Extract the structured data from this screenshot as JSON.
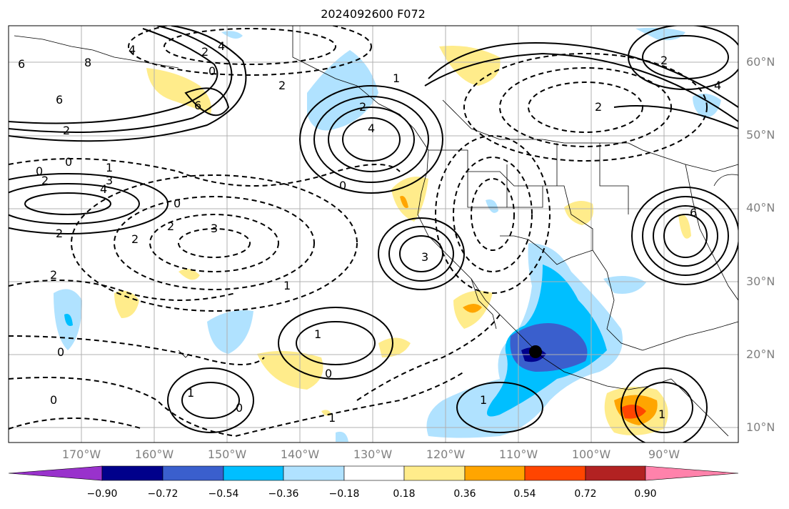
{
  "title": "2024092600 F072",
  "lat_labels": [
    "60°N",
    "50°N",
    "40°N",
    "30°N",
    "20°N",
    "10°N"
  ],
  "lon_labels": [
    "170°W",
    "160°W",
    "150°W",
    "140°W",
    "130°W",
    "120°W",
    "110°W",
    "100°W",
    "90°W"
  ],
  "colorbar": {
    "labels": [
      "−0.90",
      "−0.72",
      "−0.54",
      "−0.36",
      "−0.18",
      "0.18",
      "0.36",
      "0.54",
      "0.72",
      "0.90"
    ],
    "colors": [
      "#9932cc",
      "#00008b",
      "#3a5fcd",
      "#00bfff",
      "#b0e2ff",
      "#ffffff",
      "#ffec8b",
      "#ffa500",
      "#ff4500",
      "#b22222",
      "#ff82ab"
    ]
  },
  "contour_labels": [
    "6",
    "8",
    "4",
    "6",
    "2",
    "6",
    "2",
    "0",
    "0",
    "2",
    "4",
    "2",
    "2",
    "3",
    "1",
    "4",
    "2",
    "0",
    "0",
    "2",
    "3",
    "3",
    "1",
    "2",
    "4",
    "0",
    "1",
    "1",
    "0",
    "1",
    "0",
    "0",
    "1",
    "0",
    "2",
    "1",
    "2",
    "4",
    "6",
    "2",
    "1"
  ],
  "colors": {
    "land_line": "#000000",
    "grid": "#b0b0b0",
    "axis_label": "#808080"
  }
}
